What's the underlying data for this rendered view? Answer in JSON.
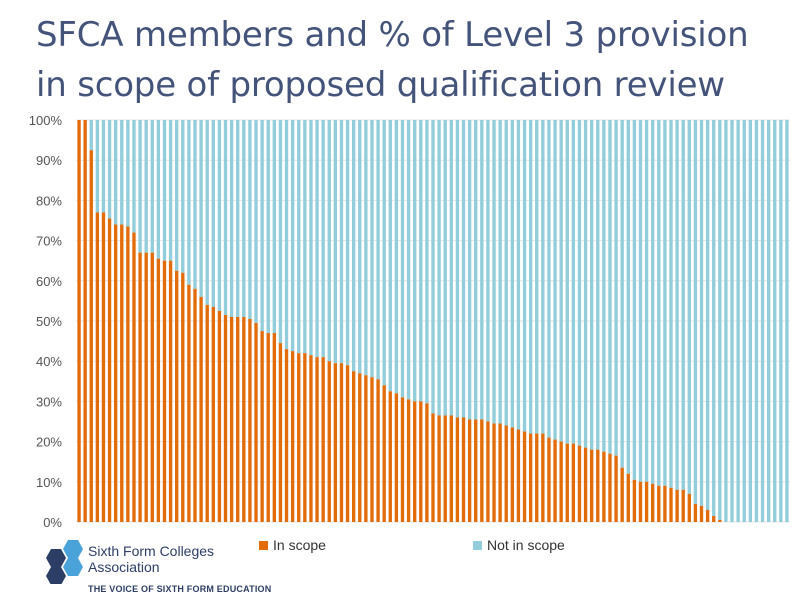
{
  "title": "SFCA members and % of Level 3 provision in scope of proposed qualification review",
  "legend": {
    "in_scope": "In scope",
    "not_in_scope": "Not in scope"
  },
  "logo": {
    "name_line1": "Sixth Form Colleges",
    "name_line2": "Association",
    "tagline": "THE VOICE OF SIXTH FORM EDUCATION"
  },
  "colors": {
    "in_scope": "#e36c0a",
    "not_in_scope": "#92cddc",
    "title": "#44537a",
    "logo_blue": "#4aa3d8",
    "logo_navy": "#2c3e66"
  },
  "chart_data": {
    "type": "bar",
    "stacked": true,
    "percent_stacked": true,
    "ylim": [
      0,
      100
    ],
    "yticks": [
      "0%",
      "10%",
      "20%",
      "30%",
      "40%",
      "50%",
      "60%",
      "70%",
      "80%",
      "90%",
      "100%"
    ],
    "legend_position": "bottom",
    "series": [
      {
        "name": "In scope",
        "values": [
          100,
          100,
          92.5,
          77,
          77,
          75.5,
          74,
          74,
          73.5,
          72,
          67,
          67,
          67,
          65.5,
          65,
          65,
          62.5,
          62,
          59,
          58,
          56,
          54,
          53.5,
          52.5,
          51.5,
          51,
          51,
          51,
          50.5,
          49.5,
          47.5,
          47,
          47,
          44.5,
          43,
          42.5,
          42,
          42,
          41.5,
          41,
          41,
          40,
          39.5,
          39.5,
          39,
          37.5,
          37,
          36.5,
          36,
          35.5,
          34,
          32.5,
          32,
          31,
          30.5,
          30,
          30,
          29.5,
          27,
          26.5,
          26.5,
          26.5,
          26,
          26,
          25.5,
          25.5,
          25.5,
          25,
          24.5,
          24.5,
          24,
          23.5,
          23,
          22.5,
          22,
          22,
          22,
          21,
          20.5,
          20,
          19.5,
          19.5,
          19,
          18.5,
          18,
          18,
          17.5,
          17,
          16.5,
          13.5,
          12,
          10.5,
          10,
          10,
          9.5,
          9,
          9,
          8.5,
          8,
          8,
          7,
          4.5,
          4,
          3,
          1.5,
          0.5,
          0,
          0,
          0,
          0,
          0,
          0,
          0,
          0,
          0,
          0,
          0
        ]
      },
      {
        "name": "Not in scope",
        "complement_of": "In scope"
      }
    ]
  }
}
